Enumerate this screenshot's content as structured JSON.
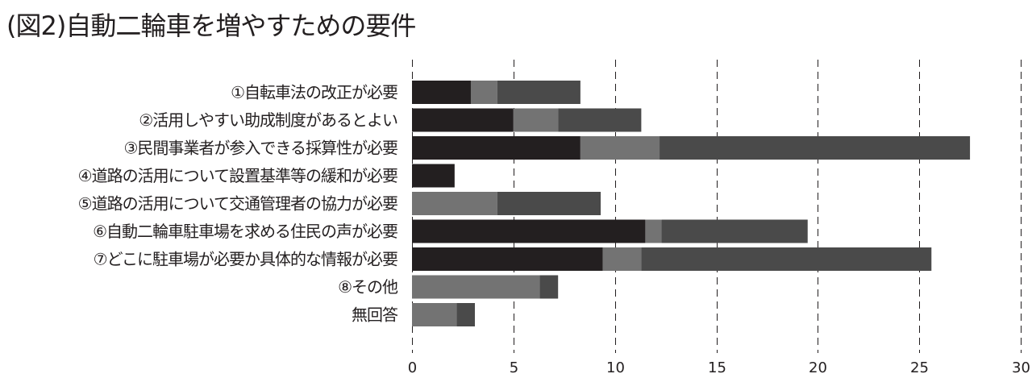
{
  "chart_data": {
    "type": "bar",
    "orientation": "horizontal",
    "stacked": true,
    "title": "(図2)自動二輪車を増やすための要件",
    "categories": [
      "①自転車法の改正が必要",
      "②活用しやすい助成制度があるとよい",
      "③民間事業者が参入できる採算性が必要",
      "④道路の活用について設置基準等の緩和が必要",
      "⑤道路の活用について交通管理者の協力が必要",
      "⑥自動二輪車駐車場を求める住民の声が必要",
      "⑦どこに駐車場が必要か具体的な情報が必要",
      "⑧その他",
      "無回答"
    ],
    "series": [
      {
        "color": "#231f20",
        "values": [
          2.9,
          5.0,
          8.3,
          2.1,
          0,
          11.5,
          9.4,
          0,
          0
        ]
      },
      {
        "color": "#737373",
        "values": [
          1.3,
          2.2,
          3.9,
          0,
          4.2,
          0.8,
          1.9,
          6.3,
          2.2
        ]
      },
      {
        "color": "#4a4a4a",
        "values": [
          4.1,
          4.1,
          15.3,
          0,
          5.1,
          7.2,
          14.3,
          0.9,
          0.9
        ]
      }
    ],
    "xticks": [
      "0",
      "5",
      "10",
      "15",
      "20",
      "25",
      "30"
    ],
    "xlim": [
      0,
      30
    ],
    "grid": "vertical-dashed"
  }
}
